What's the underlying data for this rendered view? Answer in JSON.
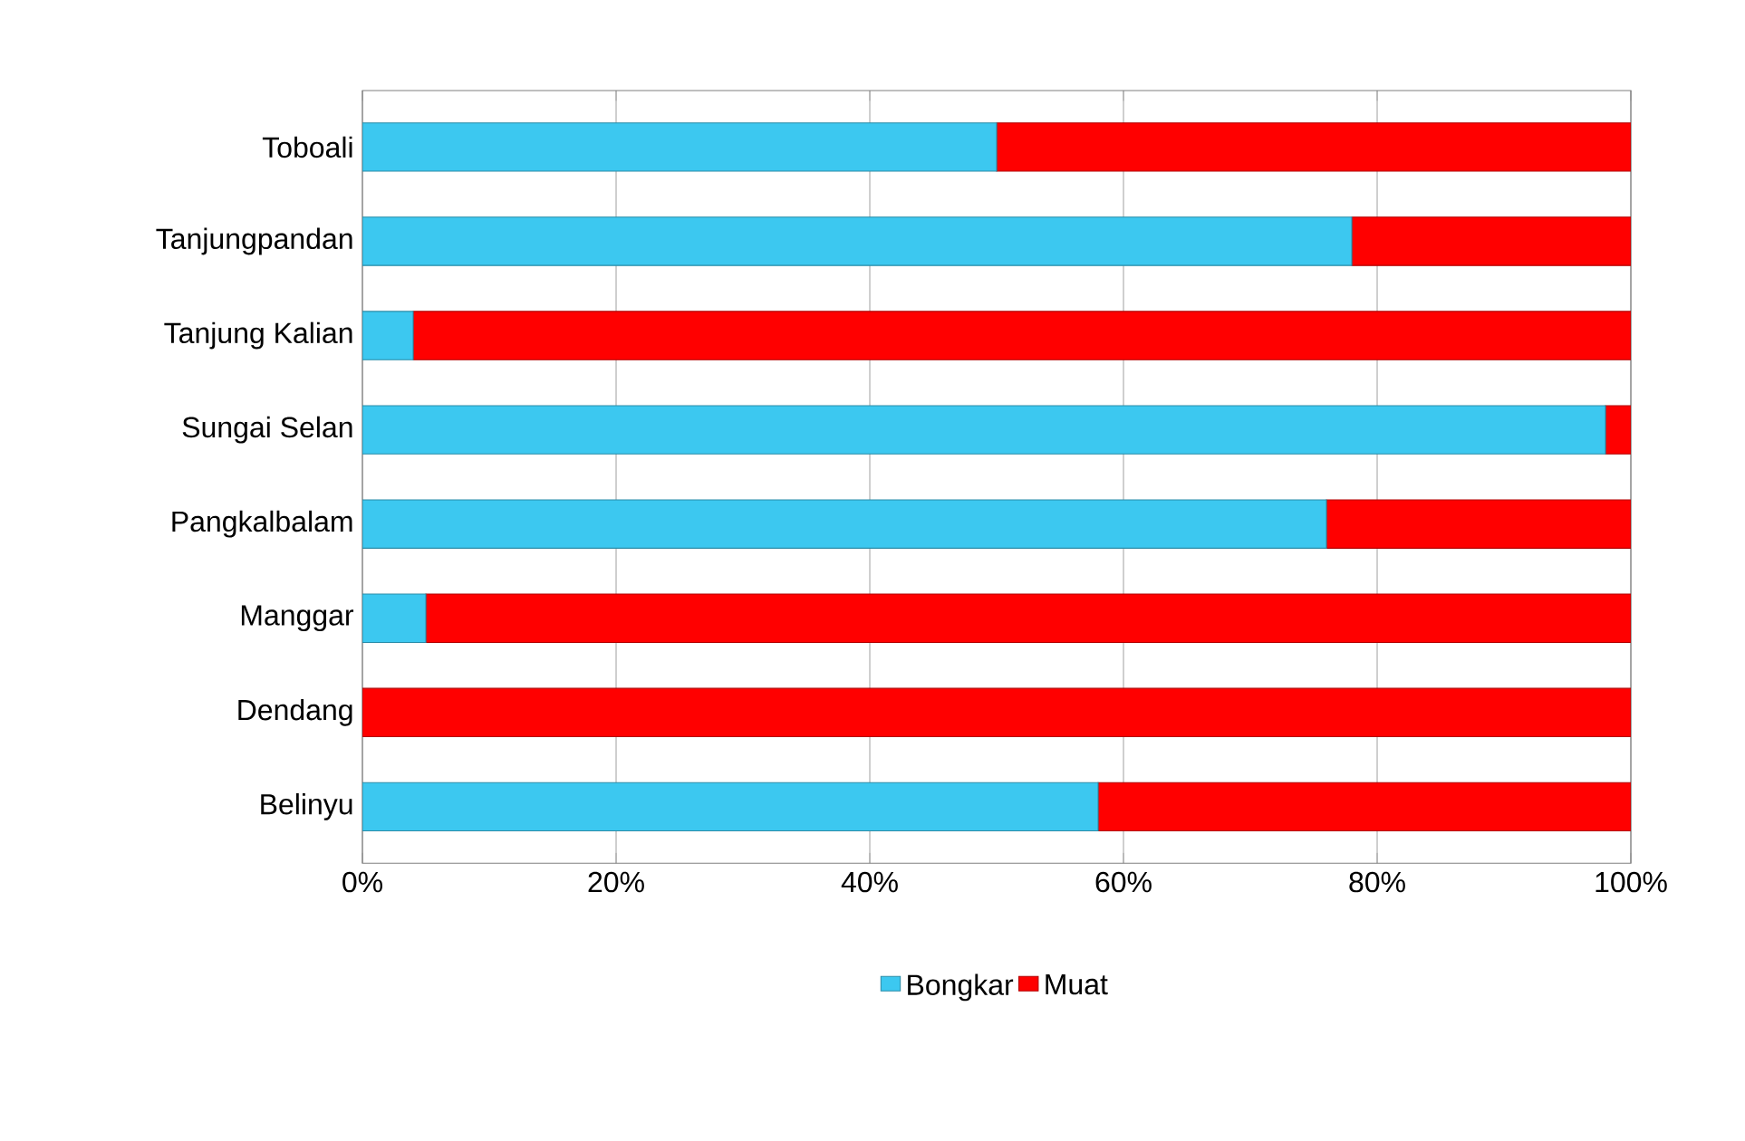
{
  "chart_data": {
    "type": "bar",
    "orientation": "horizontal",
    "stacked": true,
    "categories": [
      "Toboali",
      "Tanjungpandan",
      "Tanjung Kalian",
      "Sungai Selan",
      "Pangkalbalam",
      "Manggar",
      "Dendang",
      "Belinyu"
    ],
    "series": [
      {
        "name": "Bongkar",
        "color": "#3cc8f0",
        "values": [
          50,
          78,
          4,
          98,
          76,
          5,
          0,
          58
        ]
      },
      {
        "name": "Muat",
        "color": "#ff0000",
        "values": [
          50,
          22,
          96,
          2,
          24,
          95,
          100,
          42
        ]
      }
    ],
    "xlim": [
      0,
      100
    ],
    "xticks": [
      {
        "value": 0,
        "label": "0%"
      },
      {
        "value": 20,
        "label": "20%"
      },
      {
        "value": 40,
        "label": "40%"
      },
      {
        "value": 60,
        "label": "60%"
      },
      {
        "value": 80,
        "label": "80%"
      },
      {
        "value": 100,
        "label": "100%"
      }
    ],
    "grid": "x",
    "legend": "bottom"
  }
}
